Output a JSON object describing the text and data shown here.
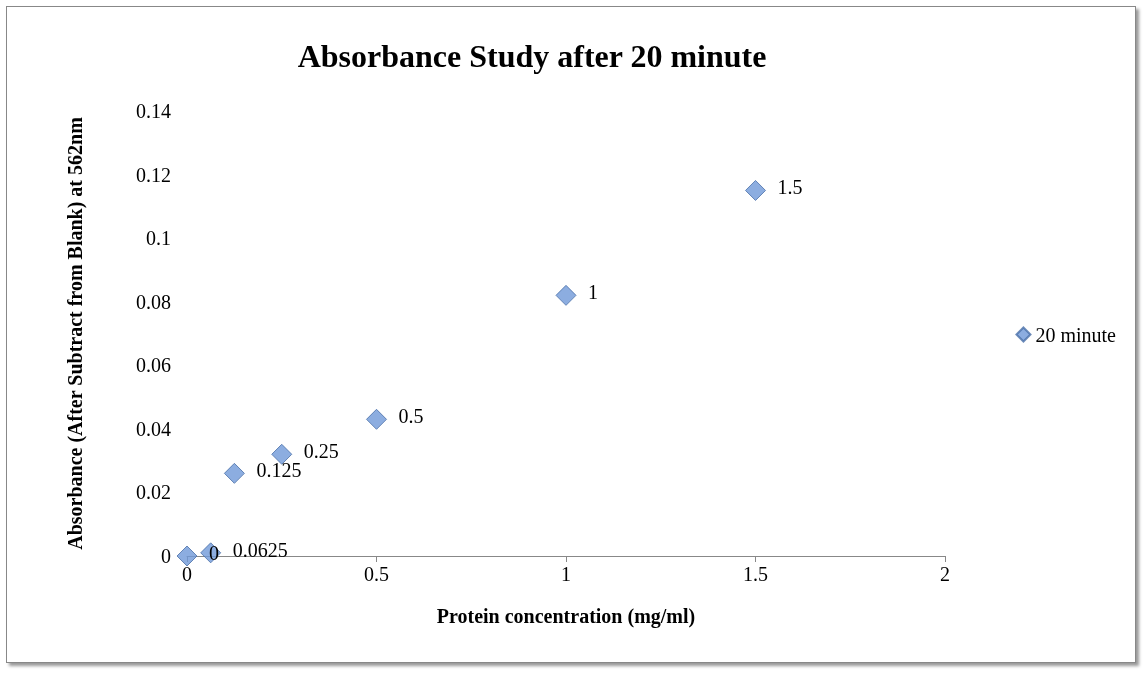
{
  "chart_data": {
    "type": "scatter",
    "title": "Absorbance Study after 20 minute",
    "xlabel": "Protein concentration (mg/ml)",
    "ylabel": "Absorbance (After Subtract from Blank) at 562nm",
    "x": [
      0,
      0.0625,
      0.125,
      0.25,
      0.5,
      1,
      1.5
    ],
    "series": [
      {
        "name": "20 minute",
        "color": "#6f98d8",
        "values": [
          0,
          0.001,
          0.026,
          0.032,
          0.043,
          0.082,
          0.115
        ]
      }
    ],
    "annotations": [
      {
        "text": "0",
        "x": 0,
        "y": 0
      },
      {
        "text": "0.0625",
        "x": 0.0625,
        "y": 0.001
      },
      {
        "text": "0.125",
        "x": 0.125,
        "y": 0.026
      },
      {
        "text": "0.25",
        "x": 0.25,
        "y": 0.032
      },
      {
        "text": "0.5",
        "x": 0.5,
        "y": 0.043
      },
      {
        "text": "1",
        "x": 1,
        "y": 0.082
      },
      {
        "text": "1.5",
        "x": 1.5,
        "y": 0.115
      }
    ],
    "xlim": [
      0,
      2
    ],
    "xticks": [
      0,
      0.5,
      1,
      1.5,
      2
    ],
    "ylim": [
      0,
      0.14
    ],
    "yticks": [
      0,
      0.02,
      0.04,
      0.06,
      0.08,
      0.1,
      0.12,
      0.14
    ],
    "grid": false,
    "legend": "right",
    "marker": "diamond"
  }
}
